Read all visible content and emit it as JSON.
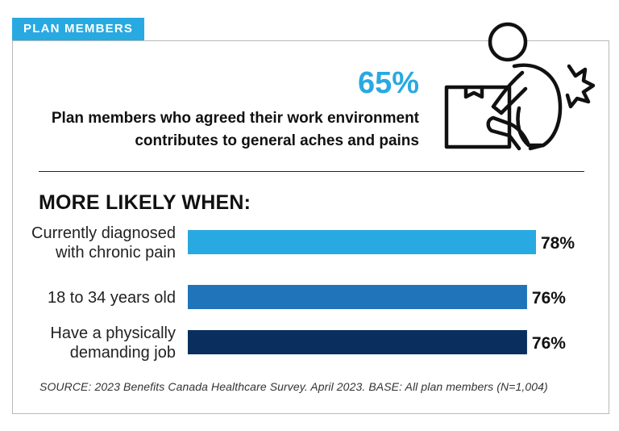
{
  "tab_label": "PLAN MEMBERS",
  "headline": {
    "stat": "65%",
    "description_line1": "Plan members who agreed their work environment",
    "description_line2": "contributes to general aches and pains"
  },
  "illustration": {
    "icon": "person-lifting-box-with-back-pain-icon"
  },
  "subhead": "MORE LIKELY WHEN:",
  "source": "SOURCE: 2023 Benefits Canada Healthcare Survey. April 2023. BASE: All plan members (N=1,004)",
  "chart_data": {
    "type": "bar",
    "orientation": "horizontal",
    "categories": [
      [
        "Currently diagnosed",
        "with chronic pain"
      ],
      [
        "18 to 34 years old"
      ],
      [
        "Have a physically",
        "demanding job"
      ]
    ],
    "values": [
      78,
      76,
      76
    ],
    "value_labels": [
      "78%",
      "76%",
      "76%"
    ],
    "bar_colors": [
      "#29a9e1",
      "#1f74ba",
      "#0a2f5e"
    ],
    "xlim": [
      0,
      78
    ],
    "grid": false
  }
}
